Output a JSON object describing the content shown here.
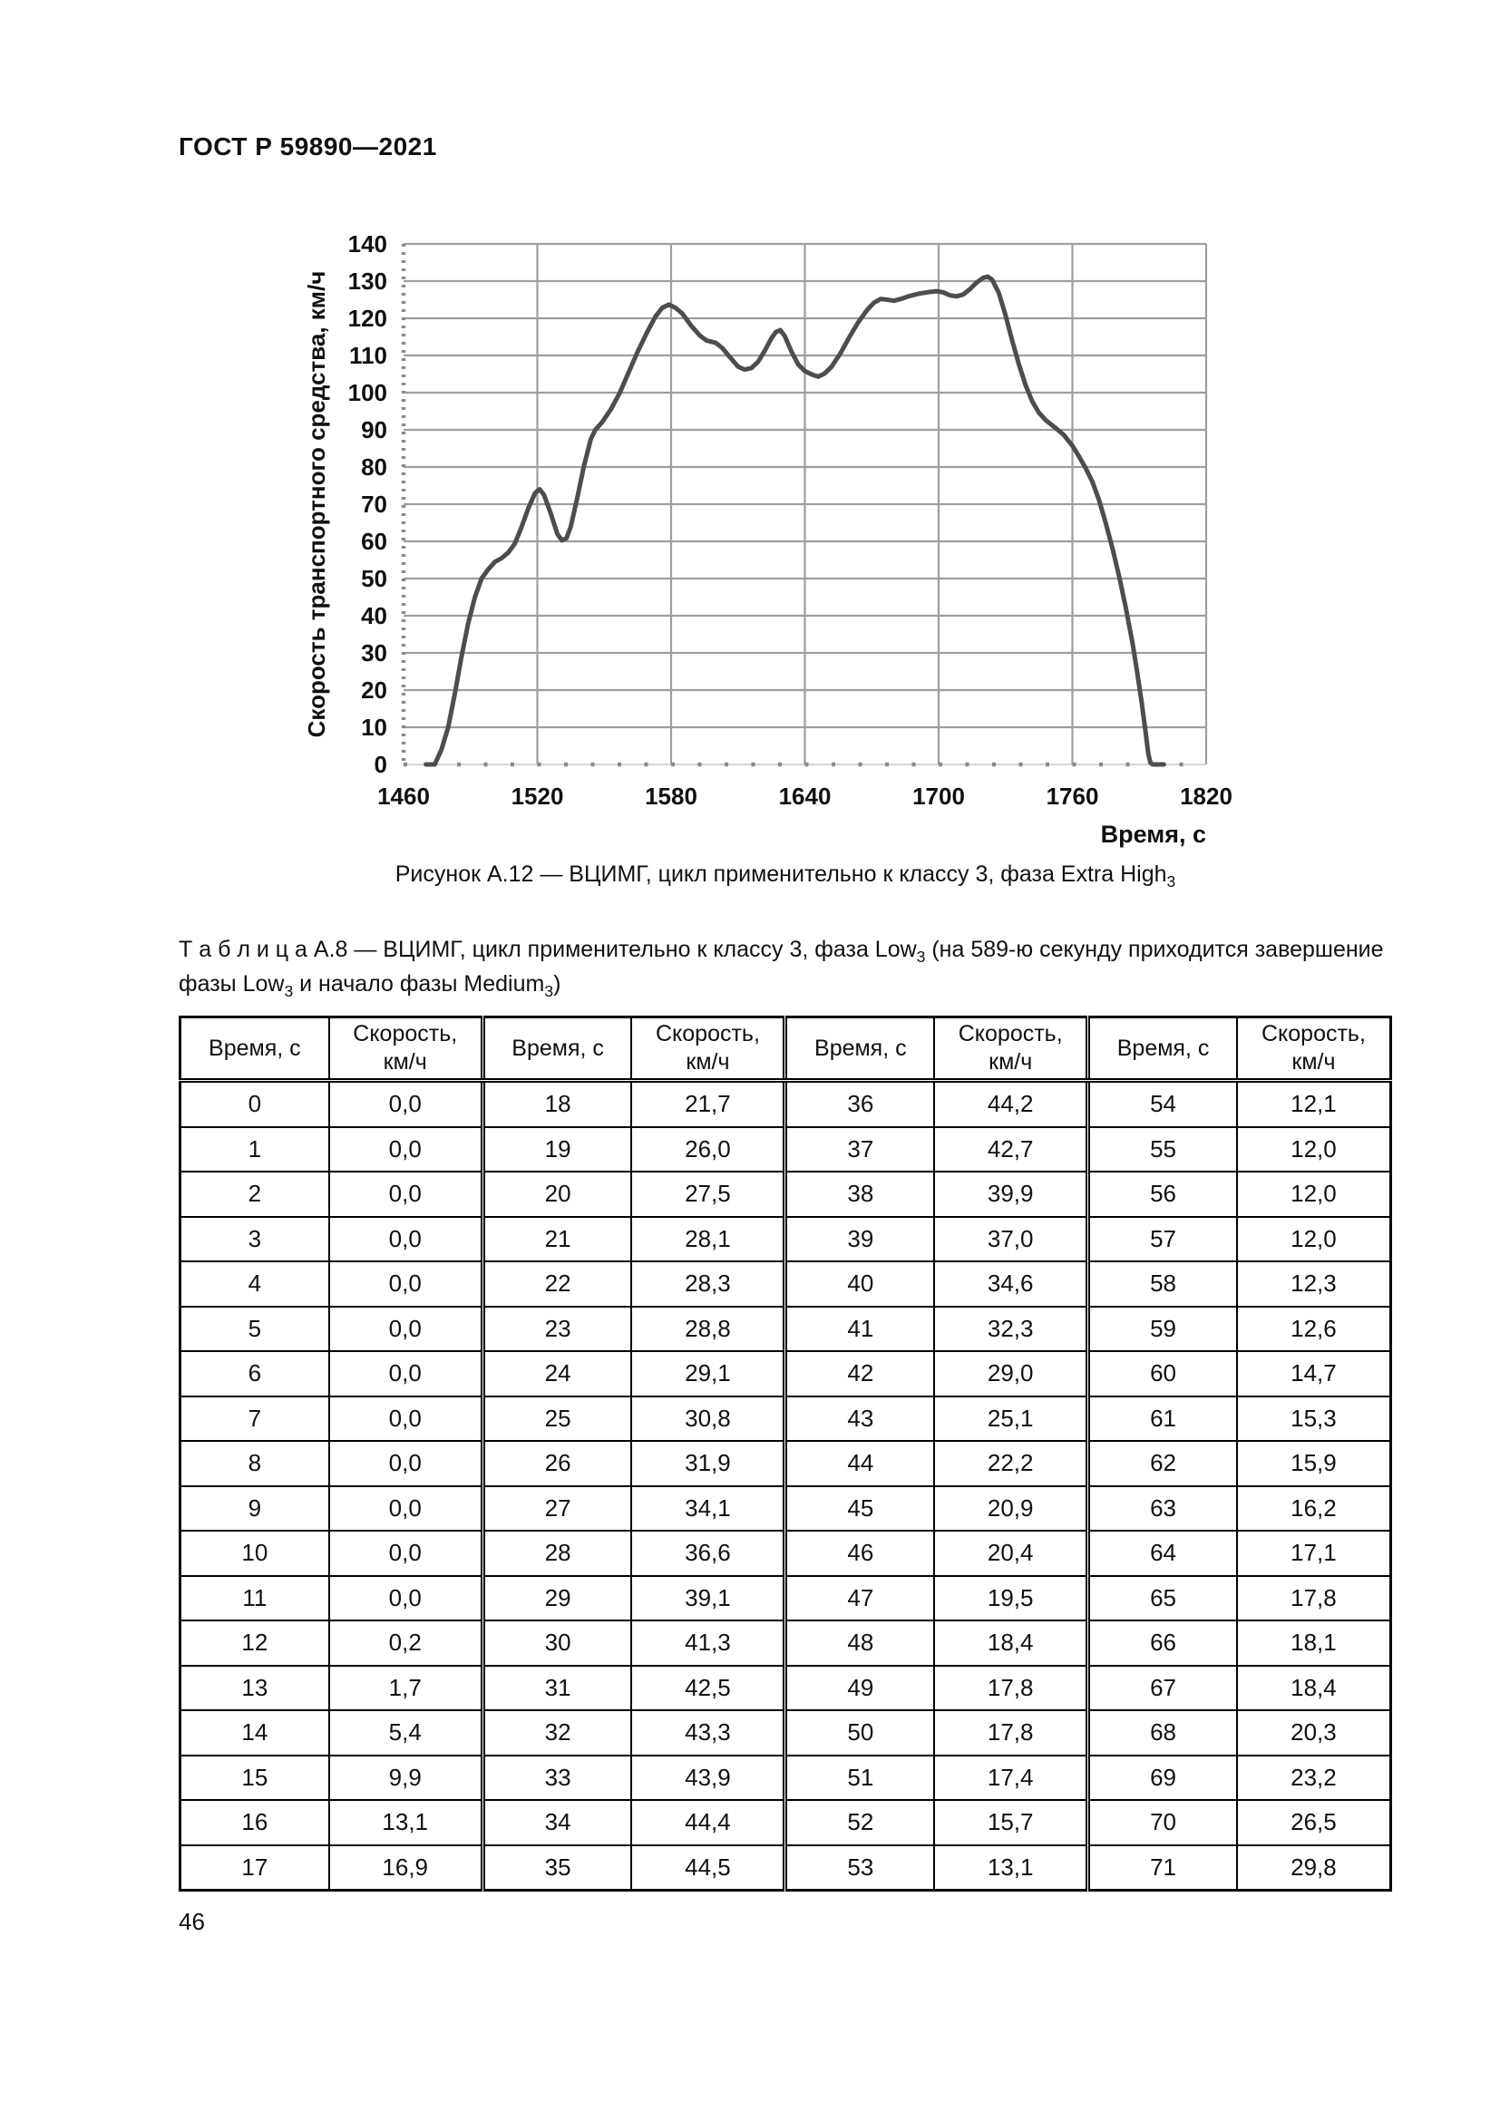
{
  "page": {
    "header": "ГОСТ Р 59890—2021",
    "page_number": "46"
  },
  "figure": {
    "caption_segments": [
      {
        "t": "Рисунок А.12 — ВЦИМГ, цикл применительно к классу 3, фаза Extra High"
      },
      {
        "t": "3",
        "sub": true
      }
    ]
  },
  "chart_data": {
    "type": "line",
    "title": "",
    "xlabel": "Время, с",
    "ylabel": "Скорость транспортного средства, км/ч",
    "xlim": [
      1460,
      1820
    ],
    "ylim": [
      0,
      140
    ],
    "x_ticks": [
      1460,
      1520,
      1580,
      1640,
      1700,
      1760,
      1820
    ],
    "y_ticks": [
      0,
      10,
      20,
      30,
      40,
      50,
      60,
      70,
      80,
      90,
      100,
      110,
      120,
      130,
      140
    ],
    "grid": true,
    "legend": "none",
    "grid_color": "#9e9e9e",
    "axis_color": "#8a8a8a",
    "line_color": "#4d4d4d",
    "series": [
      {
        "name": "Скорость транспортного средства",
        "points": [
          [
            1470,
            0
          ],
          [
            1474,
            0
          ],
          [
            1477,
            4
          ],
          [
            1480,
            10
          ],
          [
            1483,
            19
          ],
          [
            1486,
            29
          ],
          [
            1489,
            38
          ],
          [
            1492,
            45
          ],
          [
            1495,
            50
          ],
          [
            1498,
            52.5
          ],
          [
            1501,
            54.5
          ],
          [
            1504,
            55.5
          ],
          [
            1507,
            57
          ],
          [
            1510,
            59.5
          ],
          [
            1513,
            64
          ],
          [
            1516,
            69
          ],
          [
            1519,
            73
          ],
          [
            1521,
            74
          ],
          [
            1523,
            72.5
          ],
          [
            1526,
            67.5
          ],
          [
            1529,
            62
          ],
          [
            1531,
            60.3
          ],
          [
            1533,
            60.8
          ],
          [
            1535,
            64
          ],
          [
            1538,
            72
          ],
          [
            1541,
            80.5
          ],
          [
            1544,
            87.5
          ],
          [
            1546,
            90
          ],
          [
            1549,
            92
          ],
          [
            1553,
            95.5
          ],
          [
            1557,
            100
          ],
          [
            1561,
            105.5
          ],
          [
            1565,
            111
          ],
          [
            1569,
            116
          ],
          [
            1573,
            120.5
          ],
          [
            1576,
            122.8
          ],
          [
            1579,
            123.7
          ],
          [
            1582,
            122.8
          ],
          [
            1585,
            121.3
          ],
          [
            1589,
            118
          ],
          [
            1593,
            115.3
          ],
          [
            1596,
            114
          ],
          [
            1600,
            113.4
          ],
          [
            1603,
            112
          ],
          [
            1606,
            109.8
          ],
          [
            1610,
            107
          ],
          [
            1613,
            106.2
          ],
          [
            1616,
            106.6
          ],
          [
            1619,
            108.3
          ],
          [
            1622,
            111.3
          ],
          [
            1625,
            114.6
          ],
          [
            1627,
            116.3
          ],
          [
            1629,
            116.8
          ],
          [
            1631,
            115.2
          ],
          [
            1634,
            111
          ],
          [
            1637,
            107.6
          ],
          [
            1640,
            105.8
          ],
          [
            1643,
            104.9
          ],
          [
            1646,
            104.3
          ],
          [
            1649,
            105.2
          ],
          [
            1652,
            107
          ],
          [
            1656,
            110.6
          ],
          [
            1660,
            115
          ],
          [
            1664,
            119
          ],
          [
            1668,
            122.3
          ],
          [
            1671,
            124.2
          ],
          [
            1674,
            125.2
          ],
          [
            1677,
            125
          ],
          [
            1680,
            124.7
          ],
          [
            1683,
            125.2
          ],
          [
            1687,
            126
          ],
          [
            1691,
            126.6
          ],
          [
            1695,
            127
          ],
          [
            1699,
            127.3
          ],
          [
            1702,
            127
          ],
          [
            1705,
            126.2
          ],
          [
            1708,
            125.9
          ],
          [
            1711,
            126.4
          ],
          [
            1714,
            127.8
          ],
          [
            1717,
            129.6
          ],
          [
            1720,
            130.9
          ],
          [
            1722,
            131.2
          ],
          [
            1724,
            130.4
          ],
          [
            1727,
            126.8
          ],
          [
            1730,
            120.8
          ],
          [
            1733,
            114
          ],
          [
            1736,
            107.6
          ],
          [
            1739,
            102
          ],
          [
            1742,
            97.6
          ],
          [
            1745,
            94.6
          ],
          [
            1748,
            92.6
          ],
          [
            1752,
            90.7
          ],
          [
            1756,
            88.7
          ],
          [
            1760,
            85.7
          ],
          [
            1763,
            82.8
          ],
          [
            1766,
            79.6
          ],
          [
            1769,
            76
          ],
          [
            1772,
            71
          ],
          [
            1775,
            64.8
          ],
          [
            1778,
            58
          ],
          [
            1781,
            50.5
          ],
          [
            1784,
            42
          ],
          [
            1787,
            32.5
          ],
          [
            1789,
            25
          ],
          [
            1791,
            17
          ],
          [
            1793,
            8
          ],
          [
            1794,
            3
          ],
          [
            1795,
            0.5
          ],
          [
            1796,
            0
          ],
          [
            1801,
            0
          ]
        ]
      }
    ]
  },
  "table": {
    "caption_segments": [
      {
        "t": "Т а б л и ц а  А.8 — ВЦИМГ, цикл применительно к классу 3, фаза Low"
      },
      {
        "t": "3",
        "sub": true
      },
      {
        "t": " (на 589-ю секунду приходится завершение фазы Low"
      },
      {
        "t": "3",
        "sub": true
      },
      {
        "t": " и начало фазы Medium"
      },
      {
        "t": "3",
        "sub": true
      },
      {
        "t": ")"
      }
    ],
    "header": {
      "time": "Время, с",
      "speed_line1": "Скорость,",
      "speed_line2": "км/ч"
    },
    "rows": [
      [
        "0",
        "0,0",
        "18",
        "21,7",
        "36",
        "44,2",
        "54",
        "12,1"
      ],
      [
        "1",
        "0,0",
        "19",
        "26,0",
        "37",
        "42,7",
        "55",
        "12,0"
      ],
      [
        "2",
        "0,0",
        "20",
        "27,5",
        "38",
        "39,9",
        "56",
        "12,0"
      ],
      [
        "3",
        "0,0",
        "21",
        "28,1",
        "39",
        "37,0",
        "57",
        "12,0"
      ],
      [
        "4",
        "0,0",
        "22",
        "28,3",
        "40",
        "34,6",
        "58",
        "12,3"
      ],
      [
        "5",
        "0,0",
        "23",
        "28,8",
        "41",
        "32,3",
        "59",
        "12,6"
      ],
      [
        "6",
        "0,0",
        "24",
        "29,1",
        "42",
        "29,0",
        "60",
        "14,7"
      ],
      [
        "7",
        "0,0",
        "25",
        "30,8",
        "43",
        "25,1",
        "61",
        "15,3"
      ],
      [
        "8",
        "0,0",
        "26",
        "31,9",
        "44",
        "22,2",
        "62",
        "15,9"
      ],
      [
        "9",
        "0,0",
        "27",
        "34,1",
        "45",
        "20,9",
        "63",
        "16,2"
      ],
      [
        "10",
        "0,0",
        "28",
        "36,6",
        "46",
        "20,4",
        "64",
        "17,1"
      ],
      [
        "11",
        "0,0",
        "29",
        "39,1",
        "47",
        "19,5",
        "65",
        "17,8"
      ],
      [
        "12",
        "0,2",
        "30",
        "41,3",
        "48",
        "18,4",
        "66",
        "18,1"
      ],
      [
        "13",
        "1,7",
        "31",
        "42,5",
        "49",
        "17,8",
        "67",
        "18,4"
      ],
      [
        "14",
        "5,4",
        "32",
        "43,3",
        "50",
        "17,8",
        "68",
        "20,3"
      ],
      [
        "15",
        "9,9",
        "33",
        "43,9",
        "51",
        "17,4",
        "69",
        "23,2"
      ],
      [
        "16",
        "13,1",
        "34",
        "44,4",
        "52",
        "15,7",
        "70",
        "26,5"
      ],
      [
        "17",
        "16,9",
        "35",
        "44,5",
        "53",
        "13,1",
        "71",
        "29,8"
      ]
    ]
  }
}
